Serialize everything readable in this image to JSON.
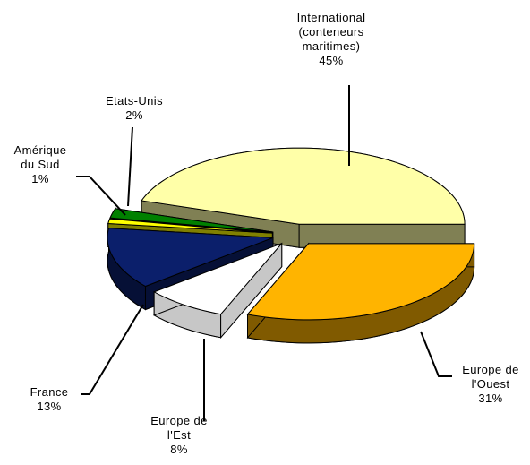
{
  "chart_data": {
    "type": "pie3d",
    "categories": [
      "International\n(conteneurs\nmaritimes)",
      "Etats-Unis",
      "Amérique\ndu Sud",
      "France",
      "Europe de\nl'Est",
      "Europe de\nl'Ouest"
    ],
    "values": [
      45,
      2,
      1,
      13,
      8,
      31
    ],
    "value_labels": [
      "45%",
      "2%",
      "1%",
      "13%",
      "8%",
      "31%"
    ],
    "colors": [
      "#ffffa8",
      "#008000",
      "#ffff00",
      "#0b1f6b",
      "#ffffff",
      "#ffb400"
    ]
  }
}
